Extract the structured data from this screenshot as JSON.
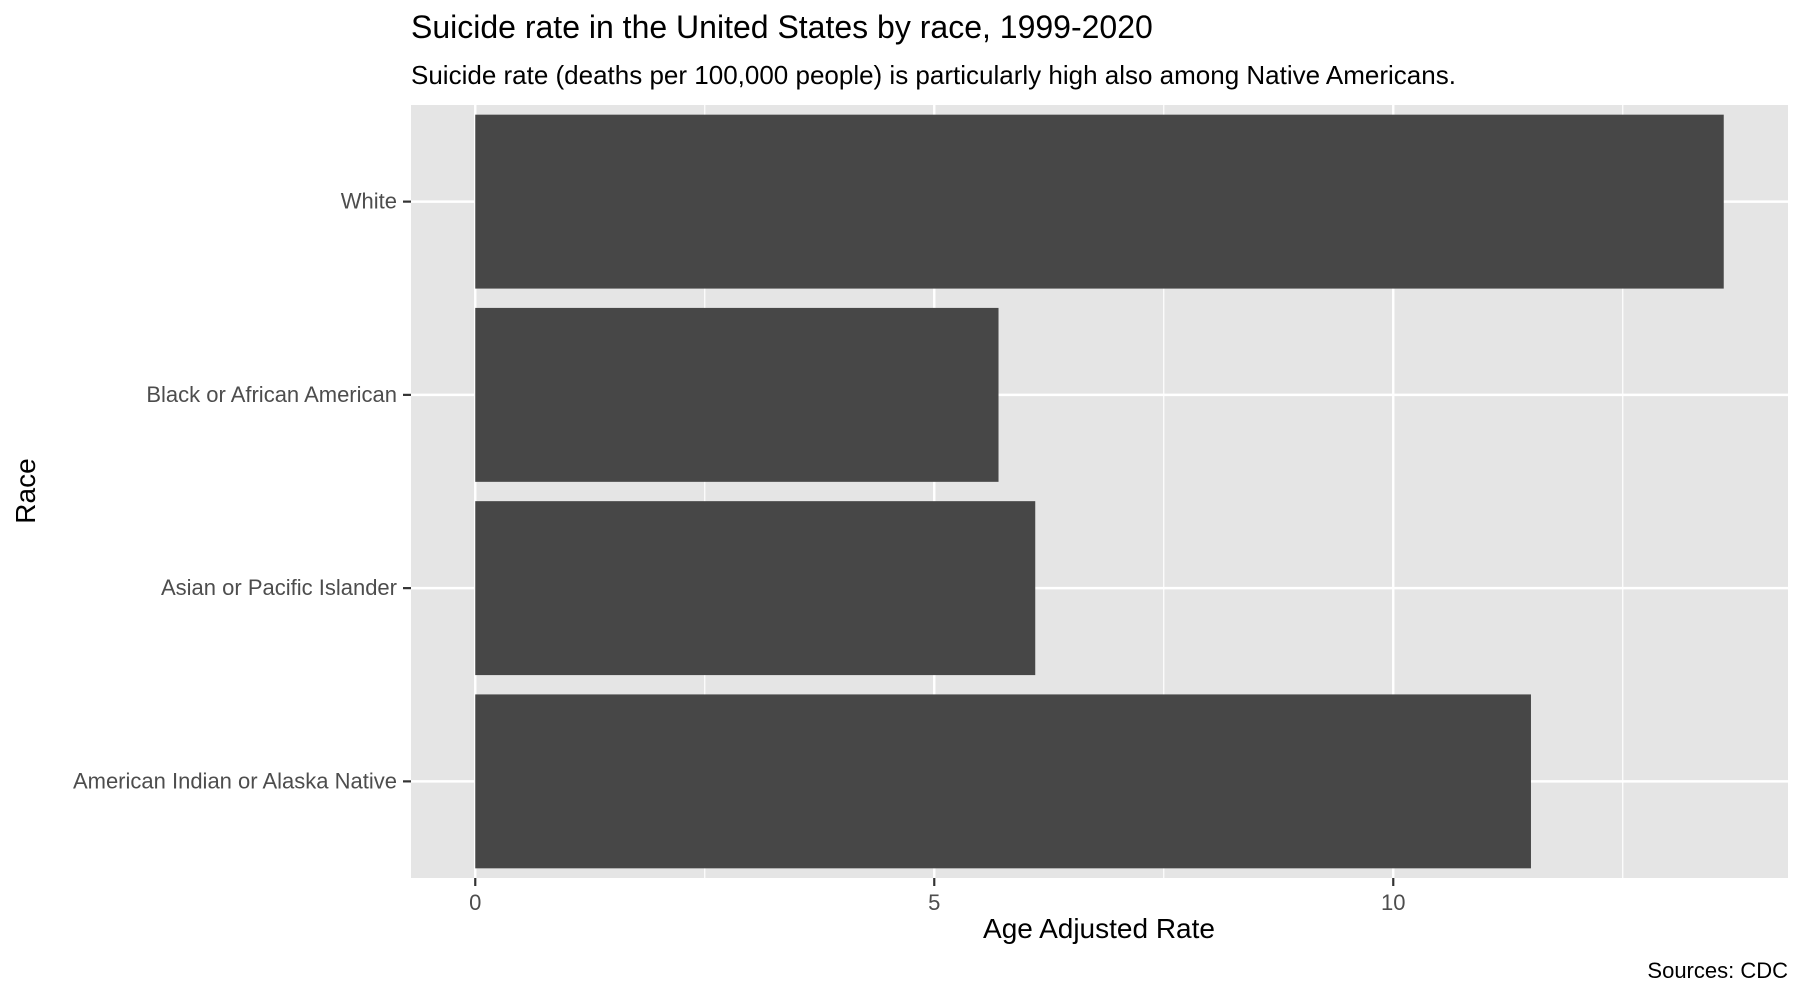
{
  "chart_data": {
    "type": "bar",
    "orientation": "horizontal",
    "title": "Suicide rate in the United States by race, 1999-2020",
    "subtitle": "Suicide rate (deaths per 100,000 people) is particularly high also among Native Americans.",
    "xlabel": "Age Adjusted Rate",
    "ylabel": "Race",
    "caption": "Sources: CDC",
    "categories": [
      "White",
      "Black or African American",
      "Asian or Pacific Islander",
      "American Indian or Alaska Native"
    ],
    "values": [
      13.6,
      5.7,
      6.1,
      11.5
    ],
    "xlim": [
      -0.7,
      14.3
    ],
    "xticks": [
      "0",
      "5",
      "10"
    ],
    "xtick_values": [
      0,
      5,
      10
    ],
    "grid": true,
    "colors": {
      "bar": "#474747",
      "panel": "#e5e5e5",
      "grid": "#ffffff",
      "text": "#4d4d4d",
      "title": "#000000"
    }
  }
}
